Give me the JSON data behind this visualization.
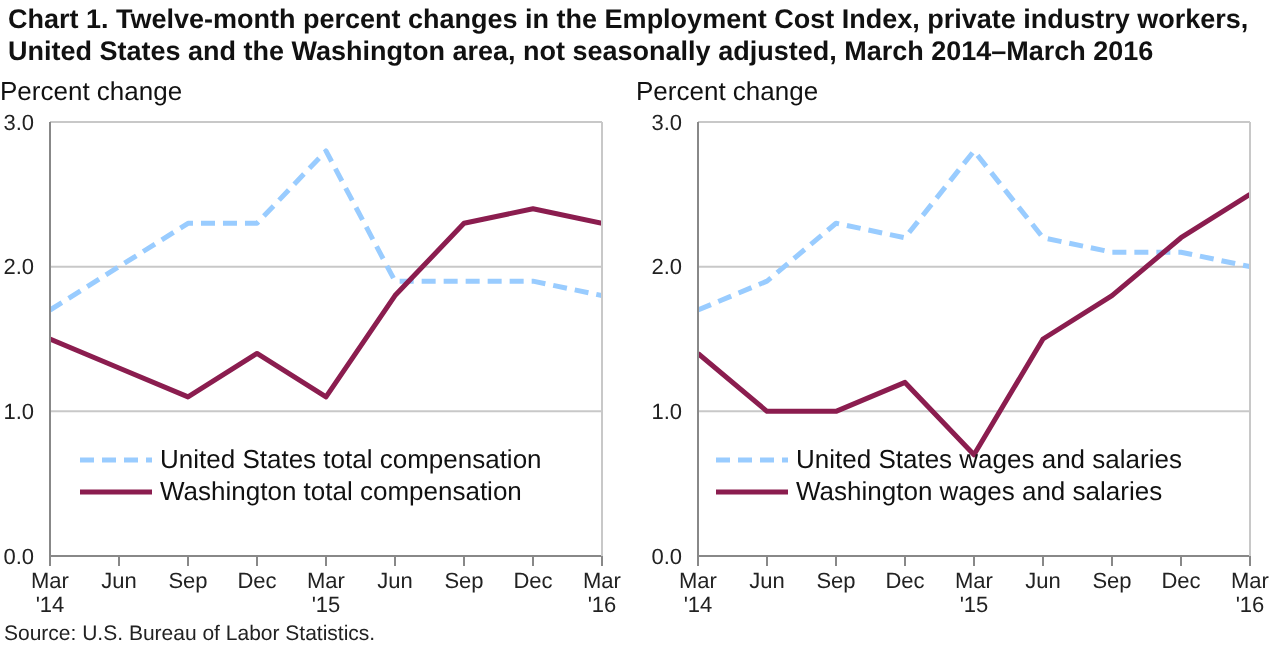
{
  "chart_data": [
    {
      "type": "line",
      "title": "Chart 1. Twelve-month percent changes in the Employment Cost Index, private industry workers, United States and the Washington area, not seasonally adjusted, March 2014–March 2016",
      "ylabel": "Percent change",
      "annotations": [
        "Source: U.S. Bureau of Labor Statistics."
      ],
      "categories": [
        "Mar '14",
        "Jun",
        "Sep",
        "Dec",
        "Mar '15",
        "Jun",
        "Sep",
        "Dec",
        "Mar '16"
      ],
      "series": [
        {
          "name": "United States total compensation",
          "color": "#99ccff",
          "line_style": "dashed",
          "values": [
            1.7,
            2.0,
            2.3,
            2.3,
            2.8,
            1.9,
            1.9,
            1.9,
            1.8
          ]
        },
        {
          "name": "Washington total compensation",
          "color": "#8b1d4f",
          "line_style": "solid",
          "values": [
            1.5,
            1.3,
            1.1,
            1.4,
            1.1,
            1.8,
            2.3,
            2.4,
            2.3
          ]
        }
      ],
      "ylim": [
        0,
        3
      ],
      "yticks": [
        {
          "value": 0,
          "label": "0.0"
        },
        {
          "value": 1,
          "label": "1.0"
        },
        {
          "value": 2,
          "label": "2.0"
        },
        {
          "value": 3,
          "label": "3.0"
        }
      ],
      "grid": "y",
      "legend": "bottom",
      "marker": "none"
    },
    {
      "type": "line",
      "ylabel": "Percent change",
      "categories": [
        "Mar '14",
        "Jun",
        "Sep",
        "Dec",
        "Mar '15",
        "Jun",
        "Sep",
        "Dec",
        "Mar '16"
      ],
      "series": [
        {
          "name": "United States wages and salaries",
          "color": "#99ccff",
          "line_style": "dashed",
          "values": [
            1.7,
            1.9,
            2.3,
            2.2,
            2.8,
            2.2,
            2.1,
            2.1,
            2.0
          ]
        },
        {
          "name": "Washington wages and salaries",
          "color": "#8b1d4f",
          "line_style": "solid",
          "values": [
            1.4,
            1.0,
            1.0,
            1.2,
            0.7,
            1.5,
            1.8,
            2.2,
            2.5
          ]
        }
      ],
      "ylim": [
        0,
        3
      ],
      "yticks": [
        {
          "value": 0,
          "label": "0.0"
        },
        {
          "value": 1,
          "label": "1.0"
        },
        {
          "value": 2,
          "label": "2.0"
        },
        {
          "value": 3,
          "label": "3.0"
        }
      ],
      "grid": "y",
      "legend": "bottom",
      "marker": "none"
    }
  ]
}
